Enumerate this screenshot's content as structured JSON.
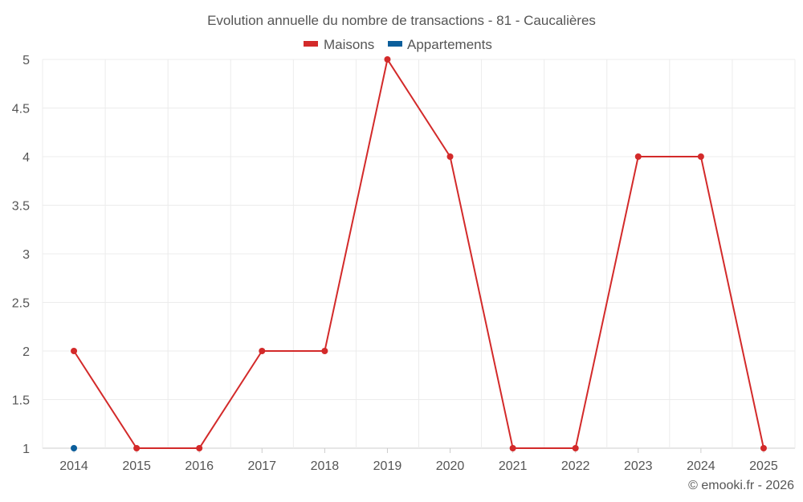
{
  "chart_data": {
    "type": "line",
    "title": "Evolution annuelle du nombre de transactions - 81 - Caucalières",
    "x": [
      "2014",
      "2015",
      "2016",
      "2017",
      "2018",
      "2019",
      "2020",
      "2021",
      "2022",
      "2023",
      "2024",
      "2025"
    ],
    "series": [
      {
        "name": "Maisons",
        "color": "#d32a2a",
        "values": [
          2,
          1,
          1,
          2,
          2,
          5,
          4,
          1,
          1,
          4,
          4,
          1
        ]
      },
      {
        "name": "Appartements",
        "color": "#0b5e9b",
        "values": [
          1,
          null,
          null,
          null,
          null,
          null,
          null,
          null,
          null,
          null,
          null,
          null
        ]
      }
    ],
    "ylim": [
      1,
      5
    ],
    "yticks": [
      "1",
      "1.5",
      "2",
      "2.5",
      "3",
      "3.5",
      "4",
      "4.5",
      "5"
    ],
    "grid": true,
    "legend": "top-center",
    "xlabel": "",
    "ylabel": ""
  },
  "credit": "© emooki.fr - 2026"
}
